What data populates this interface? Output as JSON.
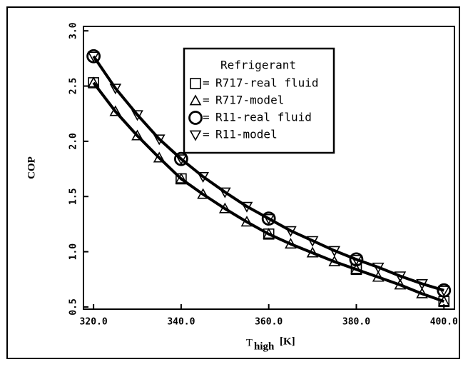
{
  "chart_data": {
    "type": "line",
    "ylabel": "COP",
    "xlabel": {
      "symbol": "T",
      "subscript": "high",
      "unit": "[K]"
    },
    "legend_title": "Refrigerant",
    "legend_separator": "=",
    "legend_position": "upper right",
    "xlim": [
      317.7,
      402.4
    ],
    "ylim": [
      0.48,
      3.04
    ],
    "xticks": [
      {
        "value": 320,
        "label": "320.0"
      },
      {
        "value": 340,
        "label": "340.0"
      },
      {
        "value": 360,
        "label": "360.0"
      },
      {
        "value": 380,
        "label": "380.0"
      },
      {
        "value": 400,
        "label": "400.0"
      }
    ],
    "yticks": [
      0.5,
      {
        "value": 1,
        "label": "1.0"
      },
      1.5,
      {
        "value": 2,
        "label": "2.0"
      },
      2.5,
      {
        "value": 3,
        "label": "3.0"
      }
    ],
    "grid": false,
    "series": [
      {
        "name": "R717-real fluid",
        "marker": "square",
        "color": "#000000",
        "line": false,
        "x": [
          320,
          340,
          360,
          380,
          400
        ],
        "values": [
          2.53,
          1.66,
          1.16,
          0.84,
          0.55
        ]
      },
      {
        "name": "R717-model",
        "marker": "triangle-up",
        "color": "#000000",
        "line": true,
        "x": [
          320,
          325,
          330,
          335,
          340,
          345,
          350,
          355,
          360,
          365,
          370,
          375,
          380,
          385,
          390,
          395,
          400
        ],
        "values": [
          2.53,
          2.27,
          2.05,
          1.85,
          1.66,
          1.52,
          1.39,
          1.27,
          1.16,
          1.07,
          0.99,
          0.91,
          0.84,
          0.77,
          0.7,
          0.62,
          0.55
        ]
      },
      {
        "name": "R11-real fluid",
        "marker": "circle",
        "color": "#000000",
        "line": false,
        "x": [
          320,
          340,
          360,
          380,
          400
        ],
        "values": [
          2.77,
          1.84,
          1.3,
          0.93,
          0.65
        ]
      },
      {
        "name": "R11-model",
        "marker": "triangle-down",
        "color": "#000000",
        "line": true,
        "x": [
          320,
          325,
          330,
          335,
          340,
          345,
          350,
          355,
          360,
          365,
          370,
          375,
          380,
          385,
          390,
          395,
          400
        ],
        "values": [
          2.77,
          2.48,
          2.24,
          2.02,
          1.84,
          1.68,
          1.54,
          1.41,
          1.3,
          1.19,
          1.1,
          1.01,
          0.93,
          0.86,
          0.78,
          0.71,
          0.65
        ]
      }
    ]
  }
}
